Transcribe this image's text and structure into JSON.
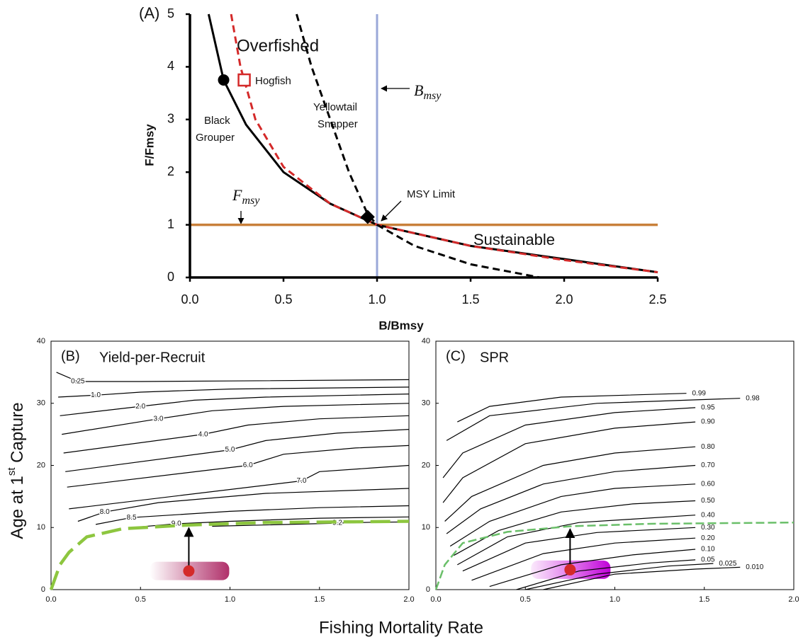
{
  "chart_data": [
    {
      "type": "line",
      "xlabel": "B/Bmsy",
      "ylabel": "F/Fmsy",
      "xlim": [
        0,
        2.5
      ],
      "ylim": [
        0,
        5
      ],
      "xticks": [
        {
          "value": 0,
          "label": "0.0"
        },
        {
          "value": 0.5,
          "label": "0.5"
        },
        {
          "value": 1,
          "label": "1.0"
        },
        {
          "value": 1.5,
          "label": "1.5"
        },
        {
          "value": 2,
          "label": "2.0"
        },
        {
          "value": 2.5,
          "label": "2.5"
        }
      ],
      "yticks": [
        0,
        1,
        2,
        3,
        4,
        5
      ],
      "series": [
        {
          "name": "Black Grouper",
          "color": "#000000",
          "dash": false,
          "x": [
            0.1,
            0.18,
            0.3,
            0.5,
            0.75,
            1,
            1.5,
            2,
            2.5
          ],
          "values": [
            5,
            3.75,
            2.9,
            2,
            1.4,
            1,
            0.6,
            0.35,
            0.1
          ]
        },
        {
          "name": "Hogfish",
          "color": "#d42a2a",
          "dash": true,
          "x": [
            0.22,
            0.27,
            0.35,
            0.5,
            0.75,
            1,
            1.5,
            2,
            2.5
          ],
          "values": [
            5,
            4,
            3,
            2.1,
            1.4,
            1,
            0.6,
            0.33,
            0.1
          ]
        },
        {
          "name": "Yellowtail Snapper",
          "color": "#000000",
          "dash": true,
          "x": [
            0.57,
            0.65,
            0.75,
            0.85,
            0.95,
            1,
            1.2,
            1.5,
            1.87
          ],
          "values": [
            5,
            4,
            3,
            2,
            1.2,
            1,
            0.6,
            0.25,
            0
          ]
        }
      ],
      "hlines": [
        {
          "value": 1,
          "color": "#c8803a"
        }
      ],
      "vlines": [
        {
          "value": 1,
          "color": "#9aa8d8"
        }
      ],
      "markers": [
        {
          "x": 0.18,
          "y": 3.75,
          "shape": "circle",
          "color": "#000000"
        },
        {
          "x": 0.29,
          "y": 3.75,
          "shape": "square",
          "color": "#d42a2a"
        },
        {
          "x": 0.95,
          "y": 1.15,
          "shape": "diamond",
          "color": "#000000"
        }
      ],
      "annotations": {
        "panel": "(A)",
        "overfished": "Overfished",
        "hogfish": "Hogfish",
        "black": "Black",
        "grouper": "Grouper",
        "yellowtail": "Yellowtail",
        "snapper": "Snapper",
        "msy_limit": "MSY Limit",
        "sustainable": "Sustainable",
        "bmsy": {
          "main": "B",
          "sub": "msy"
        },
        "fmsy": {
          "main": "F",
          "sub": "msy"
        }
      }
    },
    {
      "type": "contour",
      "panel": "(B)",
      "title": "Yield-per-Recruit",
      "xlabel": "Fishing Mortality Rate",
      "ylabel": {
        "before": "Age at 1",
        "sup": "st",
        "after": " Capture"
      },
      "xlim": [
        0,
        2
      ],
      "ylim": [
        0,
        40
      ],
      "xticks": [
        {
          "value": 0,
          "label": "0.0"
        },
        {
          "value": 0.5,
          "label": "0.5"
        },
        {
          "value": 1,
          "label": "1.0"
        },
        {
          "value": 1.5,
          "label": "1.5"
        },
        {
          "value": 2,
          "label": "2.0"
        }
      ],
      "yticks": [
        0,
        10,
        20,
        30,
        40
      ],
      "series": [
        {
          "name": "0.25",
          "color": "#000000",
          "x": [
            0.03,
            0.15,
            0.5,
            1,
            2
          ],
          "values": [
            35,
            33.5,
            33.5,
            33.6,
            33.8
          ]
        },
        {
          "name": "1.0",
          "color": "#000000",
          "x": [
            0.04,
            0.25,
            0.5,
            1,
            2
          ],
          "values": [
            31,
            31.3,
            31.8,
            32.3,
            32.6
          ]
        },
        {
          "name": "2.0",
          "color": "#000000",
          "x": [
            0.05,
            0.5,
            0.8,
            1.2,
            2
          ],
          "values": [
            28,
            29.5,
            30.5,
            31,
            31.5
          ]
        },
        {
          "name": "3.0",
          "color": "#000000",
          "x": [
            0.06,
            0.6,
            0.9,
            1.3,
            2
          ],
          "values": [
            25,
            27.5,
            28.8,
            29.5,
            30
          ]
        },
        {
          "name": "4.0",
          "color": "#000000",
          "x": [
            0.07,
            0.85,
            1.1,
            1.5,
            2
          ],
          "values": [
            22,
            25,
            26.5,
            27.5,
            28
          ]
        },
        {
          "name": "5.0",
          "color": "#000000",
          "x": [
            0.08,
            1.0,
            1.2,
            1.6,
            2
          ],
          "values": [
            19,
            22.5,
            24,
            25.2,
            25.8
          ]
        },
        {
          "name": "6.0",
          "color": "#000000",
          "x": [
            0.09,
            1.1,
            1.3,
            1.7,
            2
          ],
          "values": [
            16.5,
            20,
            21.8,
            22.8,
            23.2
          ]
        },
        {
          "name": "7.0",
          "color": "#000000",
          "x": [
            0.1,
            1.4,
            1.5,
            1.8,
            2
          ],
          "values": [
            13,
            17.5,
            19,
            19.6,
            20
          ]
        },
        {
          "name": "8.0",
          "color": "#000000",
          "x": [
            0.15,
            0.3,
            0.6,
            1.2,
            2
          ],
          "values": [
            11,
            12.5,
            14,
            15.5,
            16.3
          ]
        },
        {
          "name": "8.5",
          "color": "#000000",
          "x": [
            0.25,
            0.45,
            1,
            1.5,
            2
          ],
          "values": [
            10.5,
            11.6,
            12.6,
            13.2,
            13.5
          ]
        },
        {
          "name": "9.0",
          "color": "#000000",
          "x": [
            0.45,
            0.7,
            1,
            1.5,
            2
          ],
          "values": [
            10,
            10.6,
            11,
            11.5,
            11.7
          ]
        },
        {
          "name": "9.2",
          "color": "#000000",
          "x": [
            0.9,
            1.6,
            1.8,
            2
          ],
          "values": [
            10.2,
            10.7,
            10.85,
            10.9
          ]
        }
      ],
      "optimum_line": {
        "color": "#8dc63f",
        "x": [
          0,
          0.05,
          0.1,
          0.2,
          0.4,
          0.77,
          1.2,
          2
        ],
        "values": [
          0,
          4,
          6,
          8.5,
          9.8,
          10.4,
          10.8,
          11
        ]
      },
      "marker": {
        "x": 0.77,
        "y": 3,
        "color": "#d42a2a"
      },
      "target": {
        "x": 0.77,
        "y": 10.4
      }
    },
    {
      "type": "contour",
      "panel": "(C)",
      "title": "SPR",
      "xlim": [
        0,
        2
      ],
      "ylim": [
        0,
        40
      ],
      "xticks": [
        {
          "value": 0,
          "label": "0.0"
        },
        {
          "value": 0.5,
          "label": "0.5"
        },
        {
          "value": 1,
          "label": "1.0"
        },
        {
          "value": 1.5,
          "label": "1.5"
        },
        {
          "value": 2,
          "label": "2.0"
        }
      ],
      "yticks": [
        0,
        10,
        20,
        30,
        40
      ],
      "series": [
        {
          "name": "0.99",
          "color": "#000000",
          "x": [
            0.12,
            0.3,
            0.7,
            1.4
          ],
          "values": [
            27,
            29.5,
            31,
            31.6
          ]
        },
        {
          "name": "0.98",
          "color": "#000000",
          "x": [
            0.06,
            0.3,
            0.9,
            1.7
          ],
          "values": [
            24,
            28,
            30,
            30.8
          ]
        },
        {
          "name": "0.95",
          "color": "#000000",
          "x": [
            0.04,
            0.15,
            0.5,
            1,
            1.45
          ],
          "values": [
            18,
            22,
            26.5,
            28.5,
            29.3
          ]
        },
        {
          "name": "0.90",
          "color": "#000000",
          "x": [
            0.04,
            0.15,
            0.5,
            1,
            1.45
          ],
          "values": [
            14,
            18,
            23.5,
            26,
            27
          ]
        },
        {
          "name": "0.80",
          "color": "#000000",
          "x": [
            0.05,
            0.2,
            0.6,
            1,
            1.45
          ],
          "values": [
            11,
            15,
            20,
            22,
            23
          ]
        },
        {
          "name": "0.70",
          "color": "#000000",
          "x": [
            0.06,
            0.25,
            0.6,
            1,
            1.45
          ],
          "values": [
            9,
            13,
            17,
            19,
            20
          ]
        },
        {
          "name": "0.60",
          "color": "#000000",
          "x": [
            0.08,
            0.3,
            0.7,
            1,
            1.45
          ],
          "values": [
            7,
            11,
            15,
            16.3,
            17
          ]
        },
        {
          "name": "0.50",
          "color": "#000000",
          "x": [
            0.1,
            0.35,
            0.7,
            1.1,
            1.45
          ],
          "values": [
            5.5,
            9.5,
            12.5,
            13.8,
            14.3
          ]
        },
        {
          "name": "0.40",
          "color": "#000000",
          "x": [
            0.12,
            0.4,
            0.8,
            1.45
          ],
          "values": [
            4,
            8.5,
            10.8,
            12
          ]
        },
        {
          "name": "0.30",
          "color": "#000000",
          "x": [
            0.15,
            0.5,
            0.9,
            1.45
          ],
          "values": [
            3,
            7.5,
            9.2,
            10
          ]
        },
        {
          "name": "0.20",
          "color": "#000000",
          "x": [
            0.2,
            0.6,
            1,
            1.45
          ],
          "values": [
            1.5,
            5.8,
            7.5,
            8.3
          ]
        },
        {
          "name": "0.10",
          "color": "#000000",
          "x": [
            0.3,
            0.7,
            1.1,
            1.45
          ],
          "values": [
            0.5,
            4,
            5.6,
            6.5
          ]
        },
        {
          "name": "0.05",
          "color": "#000000",
          "x": [
            0.45,
            0.8,
            1.2,
            1.45
          ],
          "values": [
            0,
            3,
            4.3,
            4.8
          ]
        },
        {
          "name": "0.025",
          "color": "#000000",
          "x": [
            0.5,
            0.9,
            1.3,
            1.55
          ],
          "values": [
            0,
            2.5,
            3.8,
            4.2
          ]
        },
        {
          "name": "0.010",
          "color": "#000000",
          "x": [
            0.6,
            1,
            1.45,
            1.7
          ],
          "values": [
            0,
            2.5,
            3.3,
            3.6
          ]
        }
      ],
      "optimum_line": {
        "color": "#6abf69",
        "x": [
          0,
          0.05,
          0.15,
          0.4,
          0.75,
          1.2,
          2
        ],
        "values": [
          0,
          4,
          7.5,
          9.3,
          10.2,
          10.6,
          10.8
        ]
      },
      "marker": {
        "x": 0.75,
        "y": 3.2,
        "color": "#d42a2a"
      },
      "target": {
        "x": 0.75,
        "y": 10.2
      }
    }
  ]
}
